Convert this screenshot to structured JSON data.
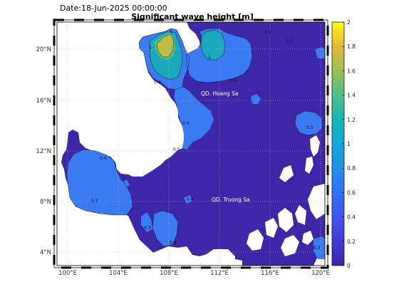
{
  "header": {
    "date_label": "Date:18-Jun-2025 00:00:00",
    "title": "Significant wave height [m]"
  },
  "map": {
    "x_ticks": [
      "100°E",
      "104°E",
      "108°E",
      "112°E",
      "116°E",
      "120°E"
    ],
    "y_ticks": [
      "4°N",
      "8°N",
      "12°N",
      "16°N",
      "20°N"
    ],
    "place_labels": [
      "QD. Hoang Sa",
      "QD. Truong Sa"
    ],
    "contour_labels": [
      "0.5",
      "1",
      "1",
      "1",
      "0.4",
      "0.5",
      "0.5",
      "0.4",
      "0.4",
      "0.3",
      "0.4",
      "0.5",
      "0.5",
      "0.3",
      "0.4",
      "0.3"
    ],
    "land_color": "#ffffff",
    "sea_color": "#3e26a8"
  },
  "colorbar": {
    "ticks": [
      "0",
      "0.2",
      "0.4",
      "0.6",
      "0.8",
      "1",
      "1.2",
      "1.4",
      "1.6",
      "1.8",
      "2"
    ],
    "min": 0,
    "max": 2,
    "colormap": "parula"
  }
}
